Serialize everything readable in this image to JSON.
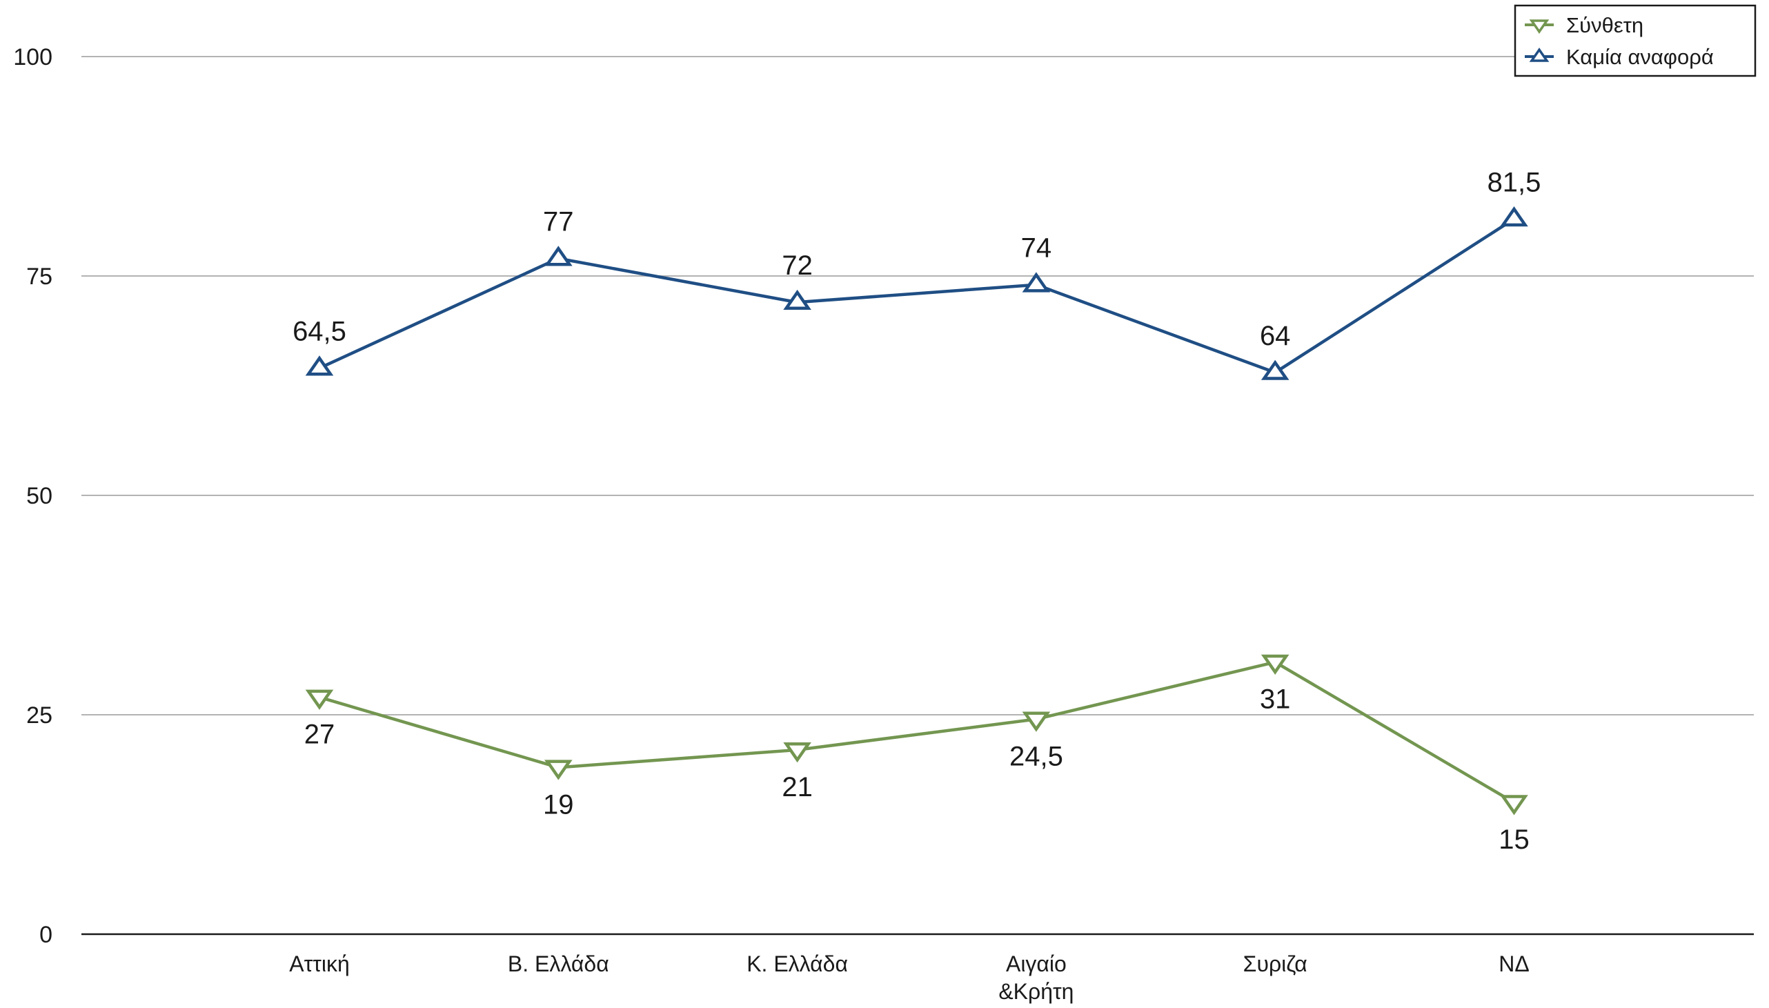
{
  "chart_data": {
    "type": "line",
    "title": "",
    "xlabel": "",
    "ylabel": "",
    "categories": [
      "Αττική",
      "Β. Ελλάδα",
      "Κ. Ελλάδα",
      "Αιγαίο\n&Κρήτη",
      "Συριζα",
      "ΝΔ"
    ],
    "ylim": [
      0,
      100
    ],
    "yticks": [
      "0",
      "25",
      "50",
      "75",
      "100"
    ],
    "grid": true,
    "legend_position": "top-right",
    "series": [
      {
        "name": "Σύνθετη",
        "color": "#739650",
        "marker": "triangle-down",
        "values": [
          27,
          19,
          21,
          24.5,
          31,
          15
        ],
        "labels": [
          "27",
          "19",
          "21",
          "24,5",
          "31",
          "15"
        ]
      },
      {
        "name": "Καμία αναφορά",
        "color": "#1f4e84",
        "marker": "triangle-up",
        "values": [
          64.5,
          77,
          72,
          74,
          64,
          81.5
        ],
        "labels": [
          "64,5",
          "77",
          "72",
          "74",
          "64",
          "81,5"
        ]
      }
    ]
  }
}
